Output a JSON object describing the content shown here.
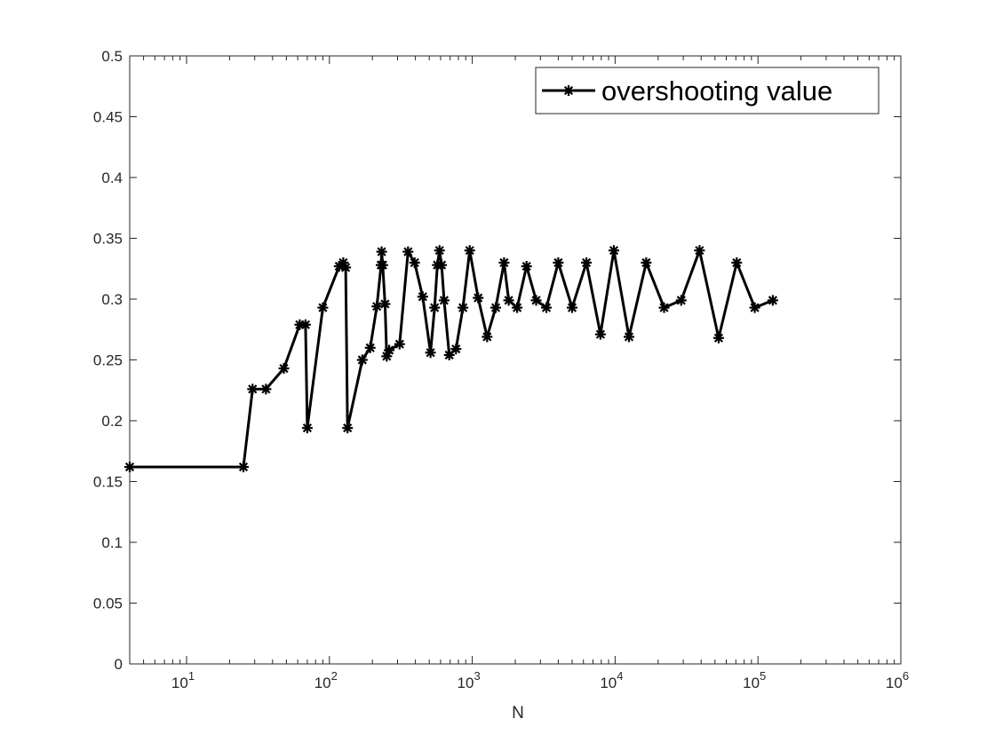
{
  "chart_data": {
    "type": "line",
    "title": "",
    "xlabel": "N",
    "ylabel": "",
    "xscale": "log",
    "xlim": [
      4,
      1000000
    ],
    "ylim": [
      0,
      0.5
    ],
    "xticks": [
      {
        "value": 10,
        "base": "10",
        "exp": "1"
      },
      {
        "value": 100,
        "base": "10",
        "exp": "2"
      },
      {
        "value": 1000,
        "base": "10",
        "exp": "3"
      },
      {
        "value": 10000,
        "base": "10",
        "exp": "4"
      },
      {
        "value": 100000,
        "base": "10",
        "exp": "5"
      },
      {
        "value": 1000000,
        "base": "10",
        "exp": "6"
      }
    ],
    "yticks": [
      "0",
      "0.05",
      "0.1",
      "0.15",
      "0.2",
      "0.25",
      "0.3",
      "0.35",
      "0.4",
      "0.45",
      "0.5"
    ],
    "grid": false,
    "legend_position": "top-right",
    "series": [
      {
        "name": "overshooting value",
        "color": "#000000",
        "marker": "asterisk",
        "points": [
          [
            4,
            0.162
          ],
          [
            25,
            0.162
          ],
          [
            29,
            0.226
          ],
          [
            36,
            0.226
          ],
          [
            48,
            0.243
          ],
          [
            62,
            0.279
          ],
          [
            68,
            0.279
          ],
          [
            70,
            0.194
          ],
          [
            90,
            0.293
          ],
          [
            117,
            0.327
          ],
          [
            125,
            0.33
          ],
          [
            130,
            0.326
          ],
          [
            134,
            0.194
          ],
          [
            170,
            0.25
          ],
          [
            193,
            0.26
          ],
          [
            215,
            0.294
          ],
          [
            230,
            0.328
          ],
          [
            232,
            0.339
          ],
          [
            236,
            0.328
          ],
          [
            245,
            0.296
          ],
          [
            252,
            0.253
          ],
          [
            262,
            0.258
          ],
          [
            310,
            0.263
          ],
          [
            355,
            0.339
          ],
          [
            395,
            0.33
          ],
          [
            450,
            0.302
          ],
          [
            510,
            0.256
          ],
          [
            545,
            0.293
          ],
          [
            570,
            0.328
          ],
          [
            590,
            0.34
          ],
          [
            610,
            0.328
          ],
          [
            635,
            0.299
          ],
          [
            690,
            0.254
          ],
          [
            770,
            0.259
          ],
          [
            860,
            0.293
          ],
          [
            960,
            0.34
          ],
          [
            1100,
            0.301
          ],
          [
            1270,
            0.269
          ],
          [
            1460,
            0.293
          ],
          [
            1670,
            0.33
          ],
          [
            1800,
            0.299
          ],
          [
            2060,
            0.293
          ],
          [
            2400,
            0.327
          ],
          [
            2800,
            0.299
          ],
          [
            3300,
            0.293
          ],
          [
            4000,
            0.33
          ],
          [
            5000,
            0.293
          ],
          [
            6300,
            0.33
          ],
          [
            7900,
            0.271
          ],
          [
            9800,
            0.34
          ],
          [
            12500,
            0.269
          ],
          [
            16500,
            0.33
          ],
          [
            22000,
            0.293
          ],
          [
            29000,
            0.299
          ],
          [
            39000,
            0.34
          ],
          [
            53000,
            0.268
          ],
          [
            71000,
            0.33
          ],
          [
            95000,
            0.293
          ],
          [
            127000,
            0.299
          ]
        ]
      }
    ]
  }
}
